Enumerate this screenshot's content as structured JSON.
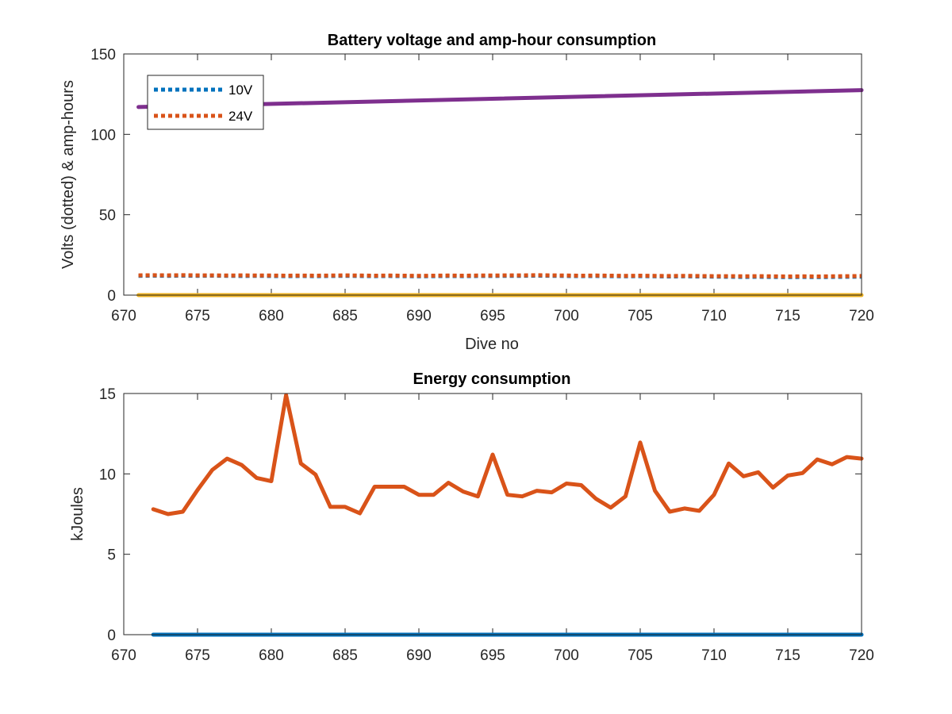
{
  "chart_data": [
    {
      "type": "line",
      "title": "Battery voltage and amp-hour consumption",
      "xlabel": "Dive no",
      "ylabel": "Volts (dotted) & amp-hours",
      "xlim": [
        670,
        720
      ],
      "ylim": [
        0,
        150
      ],
      "xticks": [
        670,
        675,
        680,
        685,
        690,
        695,
        700,
        705,
        710,
        715,
        720
      ],
      "yticks": [
        0,
        50,
        100,
        150
      ],
      "grid": false,
      "legend_position": "top-left",
      "series": [
        {
          "name": "10V",
          "style": "dotted",
          "color": "#0072BD",
          "x": [
            671,
            672,
            673,
            674,
            675,
            676,
            677,
            678,
            679,
            680,
            681,
            682,
            683,
            684,
            685,
            686,
            687,
            688,
            689,
            690,
            691,
            692,
            693,
            694,
            695,
            696,
            697,
            698,
            699,
            700,
            701,
            702,
            703,
            704,
            705,
            706,
            707,
            708,
            709,
            710,
            711,
            712,
            713,
            714,
            715,
            716,
            717,
            718,
            719,
            720
          ],
          "values": [
            12.0,
            12.1,
            12.0,
            12.1,
            12.0,
            12.1,
            12.0,
            11.9,
            12.0,
            11.9,
            11.8,
            11.9,
            11.8,
            11.9,
            12.0,
            11.9,
            11.8,
            11.9,
            11.8,
            11.7,
            11.8,
            11.9,
            11.8,
            11.9,
            11.9,
            12.0,
            12.0,
            12.1,
            12.0,
            11.9,
            11.8,
            11.9,
            11.8,
            11.7,
            11.8,
            11.7,
            11.6,
            11.7,
            11.6,
            11.5,
            11.4,
            11.3,
            11.4,
            11.3,
            11.2,
            11.3,
            11.2,
            11.3,
            11.4,
            11.5
          ]
        },
        {
          "name": "24V",
          "style": "dotted",
          "color": "#D95319",
          "x": [
            671,
            672,
            673,
            674,
            675,
            676,
            677,
            678,
            679,
            680,
            681,
            682,
            683,
            684,
            685,
            686,
            687,
            688,
            689,
            690,
            691,
            692,
            693,
            694,
            695,
            696,
            697,
            698,
            699,
            700,
            701,
            702,
            703,
            704,
            705,
            706,
            707,
            708,
            709,
            710,
            711,
            712,
            713,
            714,
            715,
            716,
            717,
            718,
            719,
            720
          ],
          "values": [
            12.3,
            12.4,
            12.3,
            12.4,
            12.3,
            12.3,
            12.2,
            12.3,
            12.2,
            12.2,
            12.1,
            12.2,
            12.1,
            12.2,
            12.3,
            12.2,
            12.1,
            12.2,
            12.1,
            12.0,
            12.1,
            12.2,
            12.1,
            12.2,
            12.2,
            12.3,
            12.3,
            12.4,
            12.3,
            12.2,
            12.1,
            12.2,
            12.1,
            12.0,
            12.1,
            12.0,
            11.9,
            12.0,
            11.9,
            11.8,
            11.8,
            11.7,
            11.8,
            11.7,
            11.6,
            11.7,
            11.6,
            11.7,
            11.8,
            11.9
          ]
        },
        {
          "style": "solid",
          "color": "#7E2F8E",
          "x": [
            671,
            720
          ],
          "values": [
            117,
            127.5
          ]
        },
        {
          "style": "solid",
          "color": "#EDB120",
          "x": [
            671,
            720
          ],
          "values": [
            0,
            0
          ]
        }
      ]
    },
    {
      "type": "line",
      "title": "Energy consumption",
      "xlabel": "",
      "ylabel": "kJoules",
      "xlim": [
        670,
        720
      ],
      "ylim": [
        0,
        15
      ],
      "xticks": [
        670,
        675,
        680,
        685,
        690,
        695,
        700,
        705,
        710,
        715,
        720
      ],
      "yticks": [
        0,
        5,
        10,
        15
      ],
      "grid": false,
      "series": [
        {
          "style": "solid",
          "color": "#D95319",
          "x": [
            672,
            673,
            674,
            675,
            676,
            677,
            678,
            679,
            680,
            681,
            682,
            683,
            684,
            685,
            686,
            687,
            688,
            689,
            690,
            691,
            692,
            693,
            694,
            695,
            696,
            697,
            698,
            699,
            700,
            701,
            702,
            703,
            704,
            705,
            706,
            707,
            708,
            709,
            710,
            711,
            712,
            713,
            714,
            715,
            716,
            717,
            718,
            719,
            720
          ],
          "values": [
            7.8,
            7.5,
            7.65,
            9.0,
            10.25,
            10.95,
            10.55,
            9.75,
            9.55,
            14.9,
            10.65,
            9.95,
            7.95,
            7.95,
            7.55,
            9.2,
            9.2,
            9.2,
            8.7,
            8.7,
            9.45,
            8.9,
            8.6,
            11.2,
            8.7,
            8.6,
            8.95,
            8.85,
            9.4,
            9.3,
            8.45,
            7.9,
            8.6,
            11.95,
            8.95,
            7.65,
            7.85,
            7.7,
            8.7,
            10.65,
            9.85,
            10.1,
            9.15,
            9.9,
            10.05,
            10.9,
            10.6,
            11.05,
            10.95
          ]
        },
        {
          "style": "solid",
          "color": "#0072BD",
          "x": [
            672,
            720
          ],
          "values": [
            0,
            0
          ]
        }
      ]
    }
  ]
}
